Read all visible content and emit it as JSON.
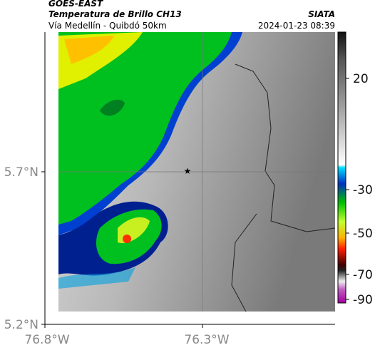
{
  "header": {
    "title": "GOES-EAST",
    "subtitle": "Temperatura de Brillo CH13",
    "location": "Vía Medellín - Quibdó 50km",
    "source": "SIATA",
    "datetime": "2024-01-23 08:39"
  },
  "axes": {
    "lat_labels": [
      "5.7°N",
      "5.2°N"
    ],
    "lon_labels": [
      "76.8°W",
      "76.3°W"
    ]
  },
  "colorbar": {
    "ticks": [
      "20",
      "-30",
      "-50",
      "-70",
      "-90"
    ]
  }
}
